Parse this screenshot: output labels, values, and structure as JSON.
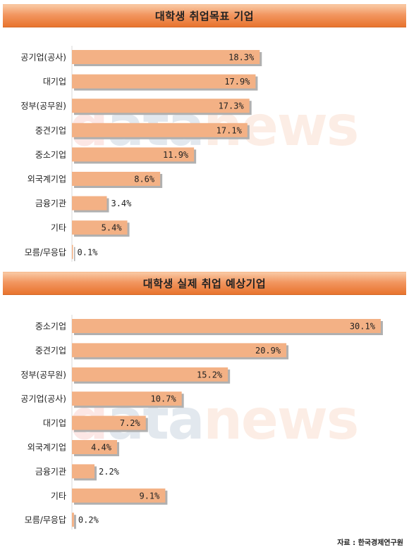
{
  "chart_data": [
    {
      "type": "bar",
      "orientation": "horizontal",
      "title": "대학생 취업목표 기업",
      "categories": [
        "공기업(공사)",
        "대기업",
        "정부(공무원)",
        "중견기업",
        "중소기업",
        "외국계기업",
        "금융기관",
        "기타",
        "모름/무응답"
      ],
      "values": [
        18.3,
        17.9,
        17.3,
        17.1,
        11.9,
        8.6,
        3.4,
        5.4,
        0.1
      ],
      "value_labels": [
        "18.3%",
        "17.9%",
        "17.3%",
        "17.1%",
        "11.9%",
        "8.6%",
        "3.4%",
        "5.4%",
        "0.1%"
      ],
      "xlim": [
        0,
        31
      ],
      "grid": false,
      "bar_color": "#f3b185"
    },
    {
      "type": "bar",
      "orientation": "horizontal",
      "title": "대학생 실제 취업 예상기업",
      "categories": [
        "중소기업",
        "중견기업",
        "정부(공무원)",
        "공기업(공사)",
        "대기업",
        "외국계기업",
        "금융기관",
        "기타",
        "모름/무응답"
      ],
      "values": [
        30.1,
        20.9,
        15.2,
        10.7,
        7.2,
        4.4,
        2.2,
        9.1,
        0.2
      ],
      "value_labels": [
        "30.1%",
        "20.9%",
        "15.2%",
        "10.7%",
        "7.2%",
        "4.4%",
        "2.2%",
        "9.1%",
        "0.2%"
      ],
      "xlim": [
        0,
        31
      ],
      "grid": false,
      "bar_color": "#f3b185"
    }
  ],
  "watermark": [
    "d",
    "ata",
    "news"
  ],
  "source": "자료 : 한국경제연구원",
  "colors": {
    "bar": "#f3b185",
    "bar_shadow": "#b0b0b0",
    "banner": "#ef8a4c",
    "text": "#222222"
  }
}
